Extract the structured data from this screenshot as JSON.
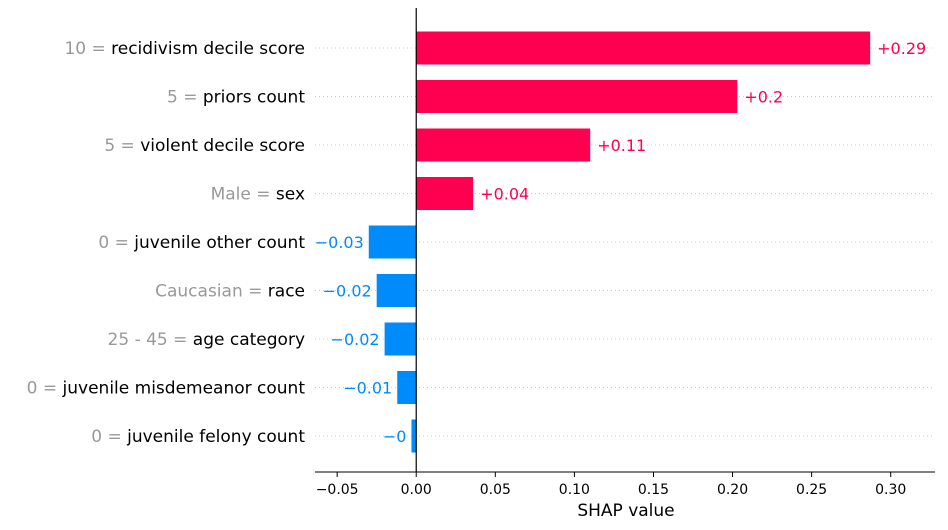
{
  "chart_data": {
    "type": "bar",
    "orientation": "horizontal",
    "xlabel": "SHAP value",
    "xlim": [
      -0.064,
      0.328
    ],
    "xticks": [
      -0.05,
      0.0,
      0.05,
      0.1,
      0.15,
      0.2,
      0.25,
      0.3
    ],
    "xtick_labels": [
      "−0.05",
      "0.00",
      "0.05",
      "0.10",
      "0.15",
      "0.20",
      "0.25",
      "0.30"
    ],
    "grid": "dotted horizontal lines per feature",
    "colors": {
      "positive": "#ff0051",
      "negative": "#008bfb",
      "feature_value_text": "#999999",
      "feature_name_text": "#000000",
      "zero_line": "#000000",
      "grid": "#cccccc"
    },
    "features": [
      {
        "value": "10",
        "name": "recidivism decile score",
        "shap": 0.287,
        "label": "+0.29"
      },
      {
        "value": "5",
        "name": "priors count",
        "shap": 0.203,
        "label": "+0.2"
      },
      {
        "value": "5",
        "name": "violent decile score",
        "shap": 0.11,
        "label": "+0.11"
      },
      {
        "value": "Male",
        "name": "sex",
        "shap": 0.036,
        "label": "+0.04"
      },
      {
        "value": "0",
        "name": "juvenile other count",
        "shap": -0.03,
        "label": "−0.03"
      },
      {
        "value": "Caucasian",
        "name": "race",
        "shap": -0.025,
        "label": "−0.02"
      },
      {
        "value": "25 - 45",
        "name": "age category",
        "shap": -0.02,
        "label": "−0.02"
      },
      {
        "value": "0",
        "name": "juvenile misdemeanor count",
        "shap": -0.012,
        "label": "−0.01"
      },
      {
        "value": "0",
        "name": "juvenile felony count",
        "shap": -0.003,
        "label": "−0"
      }
    ]
  }
}
